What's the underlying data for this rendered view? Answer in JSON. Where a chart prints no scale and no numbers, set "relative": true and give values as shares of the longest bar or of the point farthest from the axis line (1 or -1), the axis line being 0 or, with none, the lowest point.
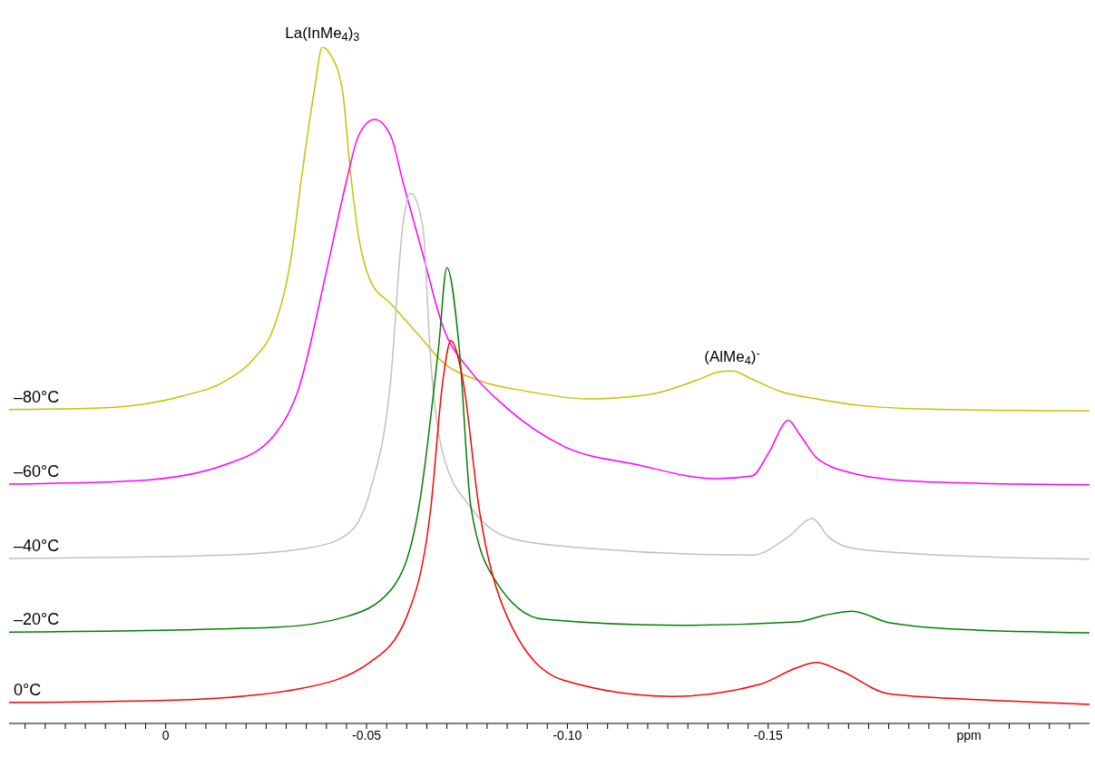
{
  "chart_data": {
    "type": "line",
    "relative": true,
    "xlim": [
      0.039,
      -0.23
    ],
    "xticks": [
      {
        "value": 0.035,
        "label": null
      },
      {
        "value": 0.03,
        "label": null
      },
      {
        "value": 0.025,
        "label": null
      },
      {
        "value": 0.02,
        "label": null
      },
      {
        "value": 0.015,
        "label": null
      },
      {
        "value": 0.01,
        "label": null
      },
      {
        "value": 0.005,
        "label": null
      },
      0,
      {
        "value": -0.005,
        "label": null
      },
      {
        "value": -0.01,
        "label": null
      },
      {
        "value": -0.015,
        "label": null
      },
      {
        "value": -0.02,
        "label": null
      },
      {
        "value": -0.025,
        "label": null
      },
      {
        "value": -0.03,
        "label": null
      },
      {
        "value": -0.035,
        "label": null
      },
      {
        "value": -0.04,
        "label": null
      },
      {
        "value": -0.045,
        "label": null
      },
      -0.05,
      {
        "value": -0.055,
        "label": null
      },
      {
        "value": -0.06,
        "label": null
      },
      {
        "value": -0.065,
        "label": null
      },
      {
        "value": -0.07,
        "label": null
      },
      {
        "value": -0.075,
        "label": null
      },
      {
        "value": -0.08,
        "label": null
      },
      {
        "value": -0.085,
        "label": null
      },
      {
        "value": -0.09,
        "label": null
      },
      {
        "value": -0.095,
        "label": null
      },
      {
        "value": -0.1,
        "label": "-0.10"
      },
      {
        "value": -0.105,
        "label": null
      },
      {
        "value": -0.11,
        "label": null
      },
      {
        "value": -0.115,
        "label": null
      },
      {
        "value": -0.12,
        "label": null
      },
      {
        "value": -0.125,
        "label": null
      },
      {
        "value": -0.13,
        "label": null
      },
      {
        "value": -0.135,
        "label": null
      },
      {
        "value": -0.14,
        "label": null
      },
      {
        "value": -0.145,
        "label": null
      },
      -0.15,
      {
        "value": -0.155,
        "label": null
      },
      {
        "value": -0.16,
        "label": null
      },
      {
        "value": -0.165,
        "label": null
      },
      {
        "value": -0.17,
        "label": null
      },
      {
        "value": -0.175,
        "label": null
      },
      {
        "value": -0.18,
        "label": null
      },
      {
        "value": -0.185,
        "label": null
      },
      {
        "value": -0.19,
        "label": null
      },
      {
        "value": -0.195,
        "label": null
      },
      {
        "value": -0.2,
        "label": "ppm"
      },
      {
        "value": -0.205,
        "label": null
      },
      {
        "value": -0.21,
        "label": null
      },
      {
        "value": -0.215,
        "label": null
      },
      {
        "value": -0.22,
        "label": null
      },
      {
        "value": -0.225,
        "label": null
      }
    ],
    "annotations": [
      {
        "text": "La(InMe$_{4}$)$_{3}$",
        "x": -0.039,
        "y": 1.0
      },
      {
        "text": "(AlMe$_{4}$)$^{-}$",
        "x": -0.141,
        "y": 0.521
      }
    ],
    "series": [
      {
        "name": "–80°C",
        "color": "#c8c000",
        "x": [
          0.039,
          0.018,
          -0.004,
          -0.015,
          -0.022,
          -0.027,
          -0.031,
          -0.034,
          -0.037,
          -0.039,
          -0.041,
          -0.044,
          -0.046,
          -0.048,
          -0.051,
          -0.056,
          -0.063,
          -0.069,
          -0.078,
          -0.09,
          -0.105,
          -0.121,
          -0.132,
          -0.138,
          -0.141,
          -0.146,
          -0.153,
          -0.162,
          -0.175,
          -0.195,
          -0.23
        ],
        "values": [
          0.464,
          0.466,
          0.484,
          0.507,
          0.54,
          0.587,
          0.681,
          0.815,
          0.936,
          1.0,
          0.989,
          0.936,
          0.815,
          0.721,
          0.654,
          0.621,
          0.574,
          0.534,
          0.507,
          0.491,
          0.48,
          0.487,
          0.507,
          0.52,
          0.521,
          0.509,
          0.491,
          0.48,
          0.469,
          0.464,
          0.462
        ]
      },
      {
        "name": "–60°C",
        "color": "#ff00ff",
        "x": [
          0.039,
          0.007,
          -0.015,
          -0.027,
          -0.033,
          -0.04,
          -0.045,
          -0.048,
          -0.052,
          -0.056,
          -0.059,
          -0.064,
          -0.069,
          -0.076,
          -0.085,
          -0.099,
          -0.117,
          -0.137,
          -0.146,
          -0.15,
          -0.155,
          -0.158,
          -0.162,
          -0.171,
          -0.184,
          -0.203,
          -0.23
        ],
        "values": [
          0.354,
          0.359,
          0.383,
          0.426,
          0.493,
          0.668,
          0.802,
          0.869,
          0.893,
          0.869,
          0.802,
          0.694,
          0.587,
          0.52,
          0.466,
          0.41,
          0.383,
          0.362,
          0.366,
          0.399,
          0.448,
          0.426,
          0.393,
          0.37,
          0.359,
          0.355,
          0.353
        ]
      },
      {
        "name": "–40°C",
        "color": "#c0c0c0",
        "x": [
          0.039,
          -0.015,
          -0.036,
          -0.045,
          -0.051,
          -0.056,
          -0.059,
          -0.061,
          -0.064,
          -0.066,
          -0.069,
          -0.076,
          -0.087,
          -0.105,
          -0.146,
          -0.155,
          -0.161,
          -0.165,
          -0.171,
          -0.184,
          -0.23
        ],
        "values": [
          0.244,
          0.249,
          0.26,
          0.279,
          0.346,
          0.507,
          0.735,
          0.784,
          0.735,
          0.534,
          0.399,
          0.319,
          0.272,
          0.259,
          0.249,
          0.276,
          0.303,
          0.276,
          0.259,
          0.252,
          0.243
        ]
      },
      {
        "name": "–20°C",
        "color": "#008000",
        "x": [
          0.039,
          -0.027,
          -0.045,
          -0.056,
          -0.063,
          -0.068,
          -0.07,
          -0.073,
          -0.076,
          -0.082,
          -0.094,
          -0.128,
          -0.157,
          -0.164,
          -0.171,
          -0.18,
          -0.198,
          -0.23
        ],
        "values": [
          0.135,
          0.142,
          0.158,
          0.197,
          0.319,
          0.56,
          0.674,
          0.56,
          0.319,
          0.212,
          0.154,
          0.145,
          0.15,
          0.16,
          0.166,
          0.149,
          0.139,
          0.134
        ]
      },
      {
        "name": "0°C",
        "color": "#ff0000",
        "x": [
          0.039,
          -0.004,
          -0.033,
          -0.051,
          -0.06,
          -0.066,
          -0.069,
          -0.071,
          -0.074,
          -0.078,
          -0.085,
          -0.099,
          -0.126,
          -0.148,
          -0.157,
          -0.162,
          -0.168,
          -0.18,
          -0.207,
          -0.23
        ],
        "values": [
          0.031,
          0.035,
          0.051,
          0.091,
          0.158,
          0.319,
          0.507,
          0.566,
          0.507,
          0.319,
          0.158,
          0.064,
          0.04,
          0.058,
          0.082,
          0.09,
          0.078,
          0.044,
          0.034,
          0.028
        ]
      }
    ]
  }
}
